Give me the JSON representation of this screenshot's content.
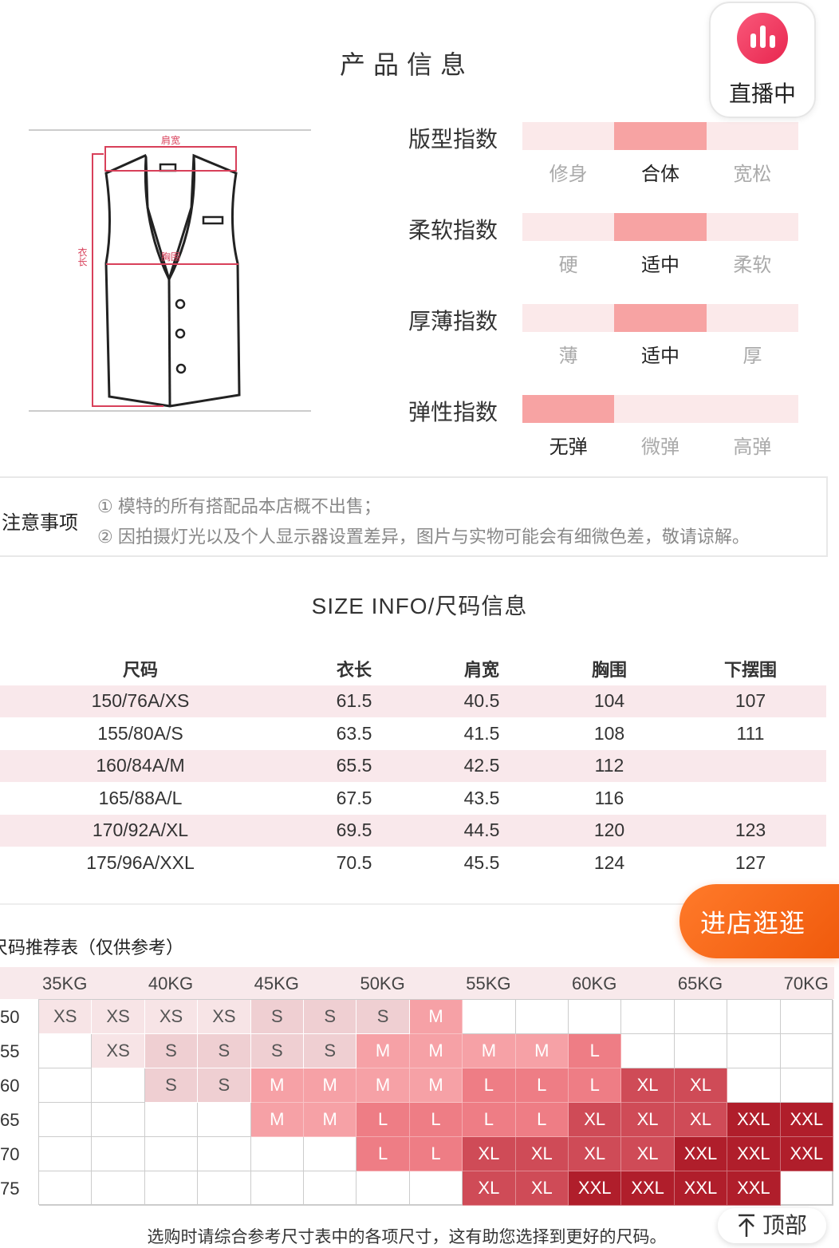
{
  "title": "产品信息",
  "diagram": {
    "shoulder": "肩宽",
    "chest": "胸围",
    "length": "衣长"
  },
  "indices": [
    {
      "label": "版型指数",
      "options": [
        "修身",
        "合体",
        "宽松"
      ],
      "selected": 1
    },
    {
      "label": "柔软指数",
      "options": [
        "硬",
        "适中",
        "柔软"
      ],
      "selected": 1
    },
    {
      "label": "厚薄指数",
      "options": [
        "薄",
        "适中",
        "厚"
      ],
      "selected": 1
    },
    {
      "label": "弹性指数",
      "options": [
        "无弹",
        "微弹",
        "高弹"
      ],
      "selected": 0
    }
  ],
  "live_badge": {
    "label": "直播中",
    "color": "#e8264f"
  },
  "notes": {
    "label": "注意事项",
    "lines": [
      "① 模特的所有搭配品本店概不出售；",
      "② 因拍摄灯光以及个人显示器设置差异，图片与实物可能会有细微色差，敬请谅解。"
    ]
  },
  "size_info": {
    "title": "SIZE INFO/尺码信息",
    "headers": [
      "尺码",
      "衣长",
      "肩宽",
      "胸围",
      "下摆围"
    ],
    "rows": [
      [
        "150/76A/XS",
        "61.5",
        "40.5",
        "104",
        "107"
      ],
      [
        "155/80A/S",
        "63.5",
        "41.5",
        "108",
        "111"
      ],
      [
        "160/84A/M",
        "65.5",
        "42.5",
        "112",
        ""
      ],
      [
        "165/88A/L",
        "67.5",
        "43.5",
        "116",
        ""
      ],
      [
        "170/92A/XL",
        "69.5",
        "44.5",
        "120",
        "123"
      ],
      [
        "175/96A/XXL",
        "70.5",
        "45.5",
        "124",
        "127"
      ]
    ]
  },
  "recommend": {
    "title": "尺码推荐表（仅供参考）",
    "weights": [
      "35KG",
      "40KG",
      "45KG",
      "50KG",
      "55KG",
      "60KG",
      "65KG",
      "70KG"
    ],
    "heights": [
      "50",
      "55",
      "60",
      "65",
      "70",
      "75"
    ],
    "grid": [
      [
        "XS",
        "XS",
        "XS",
        "XS",
        "S",
        "S",
        "S",
        "M",
        "",
        "",
        "",
        "",
        "",
        "",
        ""
      ],
      [
        "",
        "XS",
        "S",
        "S",
        "S",
        "S",
        "M",
        "M",
        "M",
        "M",
        "L",
        "",
        "",
        "",
        ""
      ],
      [
        "",
        "",
        "S",
        "S",
        "M",
        "M",
        "M",
        "M",
        "L",
        "L",
        "L",
        "XL",
        "XL",
        "",
        ""
      ],
      [
        "",
        "",
        "",
        "",
        "M",
        "M",
        "L",
        "L",
        "L",
        "L",
        "XL",
        "XL",
        "XL",
        "XXL",
        "XXL"
      ],
      [
        "",
        "",
        "",
        "",
        "",
        "",
        "L",
        "L",
        "XL",
        "XL",
        "XL",
        "XL",
        "XXL",
        "XXL",
        "XXL"
      ],
      [
        "",
        "",
        "",
        "",
        "",
        "",
        "",
        "",
        "XL",
        "XL",
        "XXL",
        "XXL",
        "XXL",
        "XXL",
        ""
      ]
    ],
    "size_colors": {
      "XS": "#f7e4e6",
      "S": "#efcfd2",
      "M": "#f6a1a6",
      "L": "#ee7d85",
      "XL": "#cf4b57",
      "XXL": "#b01e2b"
    }
  },
  "footer": "选购时请综合参考尺寸表中的各项尺寸，这有助您选择到更好的尺码。",
  "shop_button": {
    "label": "进店逛逛",
    "color": "#f26414"
  },
  "top_button": {
    "label": "顶部"
  }
}
